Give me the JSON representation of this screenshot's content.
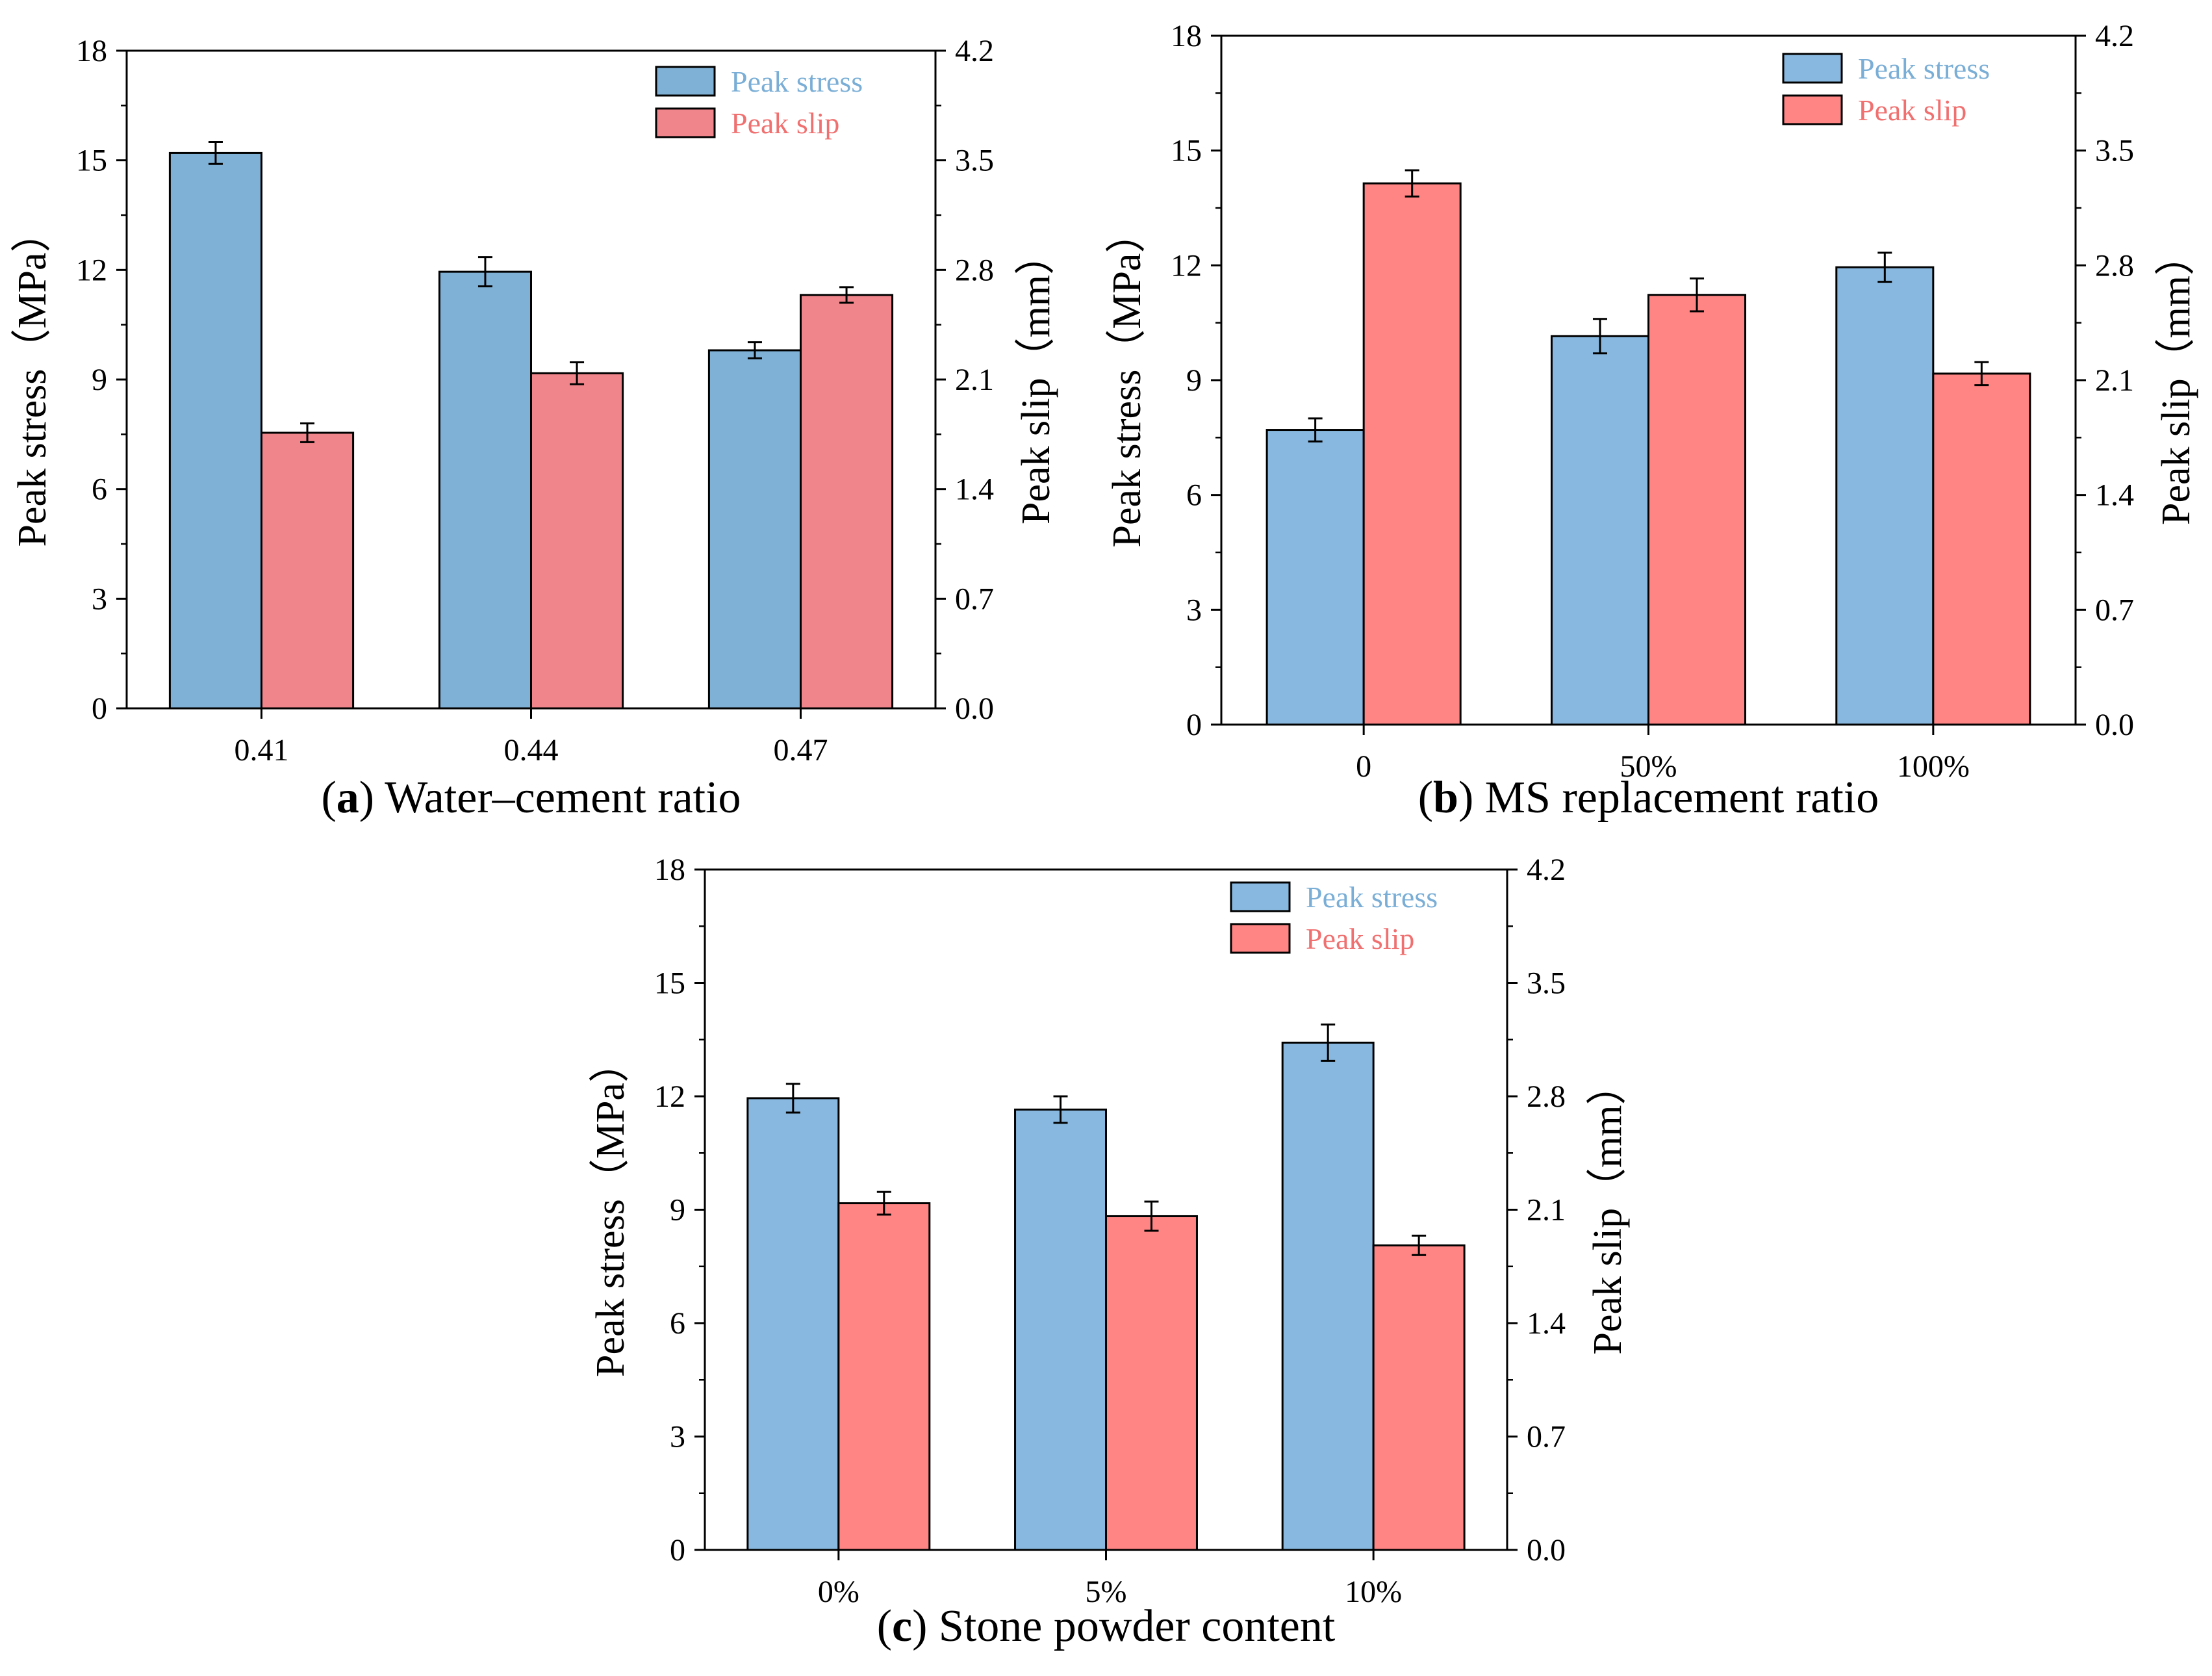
{
  "colors": {
    "stress_fill_a": "#7fb0d5",
    "slip_fill_a": "#f0858b",
    "stress_fill": "#88b8df",
    "slip_fill": "#ff8585",
    "legend_stress_text": "#7aaed6",
    "legend_slip_text": "#f07070",
    "axis": "#000000"
  },
  "chart_data": [
    {
      "panel": "a",
      "type": "bar",
      "caption": {
        "letter": "a",
        "text": "Water–cement ratio"
      },
      "categories": [
        "0.41",
        "0.44",
        "0.47"
      ],
      "series": [
        {
          "name": "Peak stress",
          "axis": "left",
          "values": [
            15.2,
            11.95,
            9.8
          ],
          "errors": [
            0.3,
            0.4,
            0.22
          ]
        },
        {
          "name": "Peak slip",
          "axis": "right",
          "values": [
            1.76,
            2.14,
            2.64
          ],
          "errors": [
            0.06,
            0.07,
            0.05
          ]
        }
      ],
      "ylabel": "Peak stress（MPa）",
      "y2label": "Peak slip（mm）",
      "ylim": [
        0,
        18
      ],
      "y2lim": [
        0,
        4.2
      ],
      "yticks": [
        "0",
        "3",
        "6",
        "9",
        "12",
        "15",
        "18"
      ],
      "y2ticks": [
        "0.0",
        "0.7",
        "1.4",
        "2.1",
        "2.8",
        "3.5",
        "4.2"
      ],
      "legend": [
        "Peak stress",
        "Peak slip"
      ],
      "legend_position": "top-right"
    },
    {
      "panel": "b",
      "type": "bar",
      "caption": {
        "letter": "b",
        "text": "MS replacement ratio"
      },
      "categories": [
        "0",
        "50%",
        "100%"
      ],
      "series": [
        {
          "name": "Peak stress",
          "axis": "left",
          "values": [
            7.7,
            10.15,
            11.95
          ],
          "errors": [
            0.3,
            0.45,
            0.38
          ]
        },
        {
          "name": "Peak slip",
          "axis": "right",
          "values": [
            3.3,
            2.62,
            2.14
          ],
          "errors": [
            0.08,
            0.1,
            0.07
          ]
        }
      ],
      "ylabel": "Peak stress（MPa）",
      "y2label": "Peak slip（mm）",
      "ylim": [
        0,
        18
      ],
      "y2lim": [
        0,
        4.2
      ],
      "yticks": [
        "0",
        "3",
        "6",
        "9",
        "12",
        "15",
        "18"
      ],
      "y2ticks": [
        "0.0",
        "0.7",
        "1.4",
        "2.1",
        "2.8",
        "3.5",
        "4.2"
      ],
      "legend": [
        "Peak stress",
        "Peak slip"
      ],
      "legend_position": "top-right"
    },
    {
      "panel": "c",
      "type": "bar",
      "caption": {
        "letter": "c",
        "text": "Stone powder content"
      },
      "categories": [
        "0%",
        "5%",
        "10%"
      ],
      "series": [
        {
          "name": "Peak stress",
          "axis": "left",
          "values": [
            11.95,
            11.65,
            13.42
          ],
          "errors": [
            0.38,
            0.35,
            0.48
          ]
        },
        {
          "name": "Peak slip",
          "axis": "right",
          "values": [
            2.14,
            2.06,
            1.88
          ],
          "errors": [
            0.07,
            0.09,
            0.06
          ]
        }
      ],
      "ylabel": "Peak stress（MPa）",
      "y2label": "Peak slip（mm）",
      "ylim": [
        0,
        18
      ],
      "y2lim": [
        0,
        4.2
      ],
      "yticks": [
        "0",
        "3",
        "6",
        "9",
        "12",
        "15",
        "18"
      ],
      "y2ticks": [
        "0.0",
        "0.7",
        "1.4",
        "2.1",
        "2.8",
        "3.5",
        "4.2"
      ],
      "legend": [
        "Peak stress",
        "Peak slip"
      ],
      "legend_position": "top-right"
    }
  ]
}
